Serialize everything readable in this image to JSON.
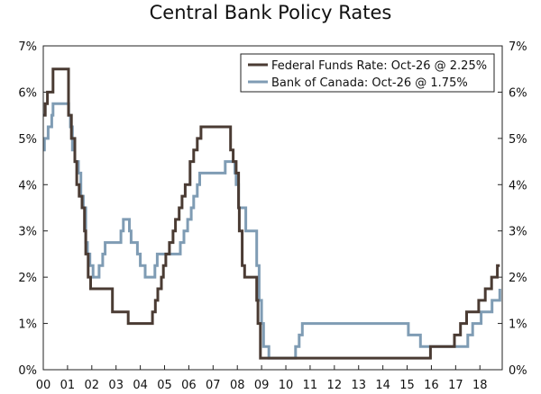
{
  "chart_data": {
    "type": "line",
    "title": "Central Bank Policy Rates",
    "xlabel": "",
    "ylabel": "",
    "xlim": [
      2000.0,
      2018.92
    ],
    "ylim": [
      0,
      7
    ],
    "y_tick_labels": [
      "0%",
      "1%",
      "2%",
      "3%",
      "4%",
      "5%",
      "6%",
      "7%"
    ],
    "y_tick_values": [
      0,
      1,
      2,
      3,
      4,
      5,
      6,
      7
    ],
    "x_tick_labels": [
      "00",
      "01",
      "02",
      "03",
      "04",
      "05",
      "06",
      "07",
      "08",
      "09",
      "10",
      "11",
      "12",
      "13",
      "14",
      "15",
      "16",
      "17",
      "18"
    ],
    "x_tick_values": [
      2000,
      2001,
      2002,
      2003,
      2004,
      2005,
      2006,
      2007,
      2008,
      2009,
      2010,
      2011,
      2012,
      2013,
      2014,
      2015,
      2016,
      2017,
      2018
    ],
    "legend_position": "top-right",
    "series": [
      {
        "name": "Federal Funds Rate: Oct-26 @ 2.25%",
        "color": "#4a3b33",
        "points": [
          [
            2000.0,
            5.5
          ],
          [
            2000.08,
            5.75
          ],
          [
            2000.17,
            6.0
          ],
          [
            2000.4,
            6.5
          ],
          [
            2000.97,
            6.5
          ],
          [
            2001.04,
            5.5
          ],
          [
            2001.16,
            5.0
          ],
          [
            2001.3,
            4.5
          ],
          [
            2001.38,
            4.0
          ],
          [
            2001.48,
            3.75
          ],
          [
            2001.6,
            3.5
          ],
          [
            2001.7,
            3.0
          ],
          [
            2001.75,
            2.5
          ],
          [
            2001.85,
            2.0
          ],
          [
            2001.95,
            1.75
          ],
          [
            2002.85,
            1.25
          ],
          [
            2003.5,
            1.0
          ],
          [
            2004.5,
            1.25
          ],
          [
            2004.62,
            1.5
          ],
          [
            2004.72,
            1.75
          ],
          [
            2004.87,
            2.0
          ],
          [
            2004.95,
            2.25
          ],
          [
            2005.05,
            2.5
          ],
          [
            2005.2,
            2.75
          ],
          [
            2005.35,
            3.0
          ],
          [
            2005.45,
            3.25
          ],
          [
            2005.6,
            3.5
          ],
          [
            2005.72,
            3.75
          ],
          [
            2005.85,
            4.0
          ],
          [
            2006.05,
            4.5
          ],
          [
            2006.2,
            4.75
          ],
          [
            2006.35,
            5.0
          ],
          [
            2006.5,
            5.25
          ],
          [
            2007.7,
            5.25
          ],
          [
            2007.72,
            4.75
          ],
          [
            2007.83,
            4.5
          ],
          [
            2007.95,
            4.25
          ],
          [
            2008.05,
            3.5
          ],
          [
            2008.08,
            3.0
          ],
          [
            2008.2,
            2.25
          ],
          [
            2008.3,
            2.0
          ],
          [
            2008.8,
            1.5
          ],
          [
            2008.85,
            1.0
          ],
          [
            2008.95,
            0.25
          ],
          [
            2015.95,
            0.25
          ],
          [
            2015.96,
            0.5
          ],
          [
            2016.95,
            0.75
          ],
          [
            2017.2,
            1.0
          ],
          [
            2017.45,
            1.25
          ],
          [
            2017.95,
            1.5
          ],
          [
            2018.22,
            1.75
          ],
          [
            2018.48,
            2.0
          ],
          [
            2018.72,
            2.25
          ],
          [
            2018.82,
            2.25
          ]
        ]
      },
      {
        "name": "Bank of Canada: Oct-26 @ 1.75%",
        "color": "#7f9cb4",
        "points": [
          [
            2000.0,
            4.75
          ],
          [
            2000.05,
            5.0
          ],
          [
            2000.2,
            5.25
          ],
          [
            2000.35,
            5.5
          ],
          [
            2000.4,
            5.75
          ],
          [
            2001.0,
            5.75
          ],
          [
            2001.05,
            5.5
          ],
          [
            2001.12,
            5.25
          ],
          [
            2001.2,
            4.75
          ],
          [
            2001.3,
            4.5
          ],
          [
            2001.45,
            4.25
          ],
          [
            2001.55,
            3.75
          ],
          [
            2001.65,
            3.5
          ],
          [
            2001.75,
            2.75
          ],
          [
            2001.82,
            2.5
          ],
          [
            2001.92,
            2.25
          ],
          [
            2002.05,
            2.0
          ],
          [
            2002.3,
            2.25
          ],
          [
            2002.45,
            2.5
          ],
          [
            2002.55,
            2.75
          ],
          [
            2003.2,
            3.0
          ],
          [
            2003.3,
            3.25
          ],
          [
            2003.55,
            3.0
          ],
          [
            2003.62,
            2.75
          ],
          [
            2003.88,
            2.5
          ],
          [
            2004.0,
            2.25
          ],
          [
            2004.2,
            2.0
          ],
          [
            2004.6,
            2.25
          ],
          [
            2004.7,
            2.5
          ],
          [
            2005.65,
            2.75
          ],
          [
            2005.8,
            3.0
          ],
          [
            2005.95,
            3.25
          ],
          [
            2006.1,
            3.5
          ],
          [
            2006.2,
            3.75
          ],
          [
            2006.35,
            4.0
          ],
          [
            2006.45,
            4.25
          ],
          [
            2007.5,
            4.5
          ],
          [
            2007.9,
            4.25
          ],
          [
            2007.95,
            4.0
          ],
          [
            2008.05,
            3.5
          ],
          [
            2008.35,
            3.0
          ],
          [
            2008.8,
            2.25
          ],
          [
            2008.9,
            1.5
          ],
          [
            2009.0,
            1.0
          ],
          [
            2009.08,
            0.5
          ],
          [
            2009.3,
            0.25
          ],
          [
            2010.4,
            0.5
          ],
          [
            2010.55,
            0.75
          ],
          [
            2010.68,
            1.0
          ],
          [
            2015.05,
            0.75
          ],
          [
            2015.55,
            0.5
          ],
          [
            2017.5,
            0.75
          ],
          [
            2017.7,
            1.0
          ],
          [
            2018.05,
            1.25
          ],
          [
            2018.5,
            1.5
          ],
          [
            2018.82,
            1.75
          ]
        ]
      }
    ]
  }
}
